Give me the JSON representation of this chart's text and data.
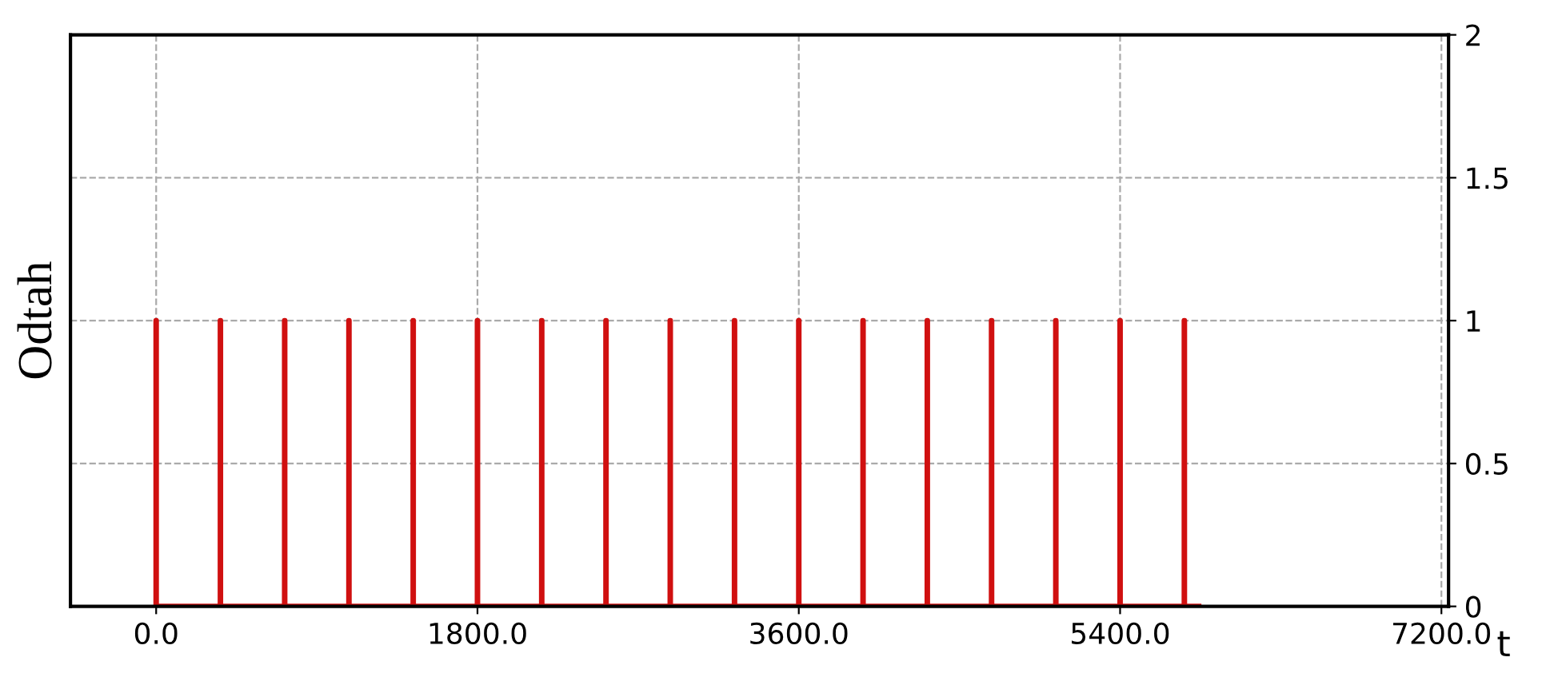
{
  "chart_data": {
    "type": "line",
    "xlabel": "t",
    "ylabel": "Odtah",
    "series": [
      {
        "color": "#d01010",
        "x": [
          0,
          0,
          0,
          360,
          360,
          360,
          720,
          720,
          720,
          1080,
          1080,
          1080,
          1440,
          1440,
          1440,
          1800,
          1800,
          1800,
          2160,
          2160,
          2160,
          2520,
          2520,
          2520,
          2880,
          2880,
          2880,
          3240,
          3240,
          3240,
          3600,
          3600,
          3600,
          3960,
          3960,
          3960,
          4320,
          4320,
          4320,
          4680,
          4680,
          4680,
          5040,
          5040,
          5040,
          5400,
          5400,
          5400,
          5760,
          5760,
          5760,
          5840
        ],
        "values": [
          0,
          1,
          0,
          0,
          1,
          0,
          0,
          1,
          0,
          0,
          1,
          0,
          0,
          1,
          0,
          0,
          1,
          0,
          0,
          1,
          0,
          0,
          1,
          0,
          0,
          1,
          0,
          0,
          1,
          0,
          0,
          1,
          0,
          0,
          1,
          0,
          0,
          1,
          0,
          0,
          1,
          0,
          0,
          1,
          0,
          0,
          1,
          0,
          0,
          1,
          0,
          0
        ]
      }
    ],
    "xlim": [
      -480,
      7240
    ],
    "ylim": [
      0,
      2
    ],
    "xticks": [
      {
        "value": 0,
        "label": "0.0"
      },
      {
        "value": 1800,
        "label": "1800.0"
      },
      {
        "value": 3600,
        "label": "3600.0"
      },
      {
        "value": 5400,
        "label": "5400.0"
      },
      {
        "value": 7200,
        "label": "7200.0"
      }
    ],
    "yticks": [
      0,
      0.5,
      1,
      1.5,
      2
    ],
    "grid": true,
    "marker": "none",
    "line_style": "solid"
  }
}
